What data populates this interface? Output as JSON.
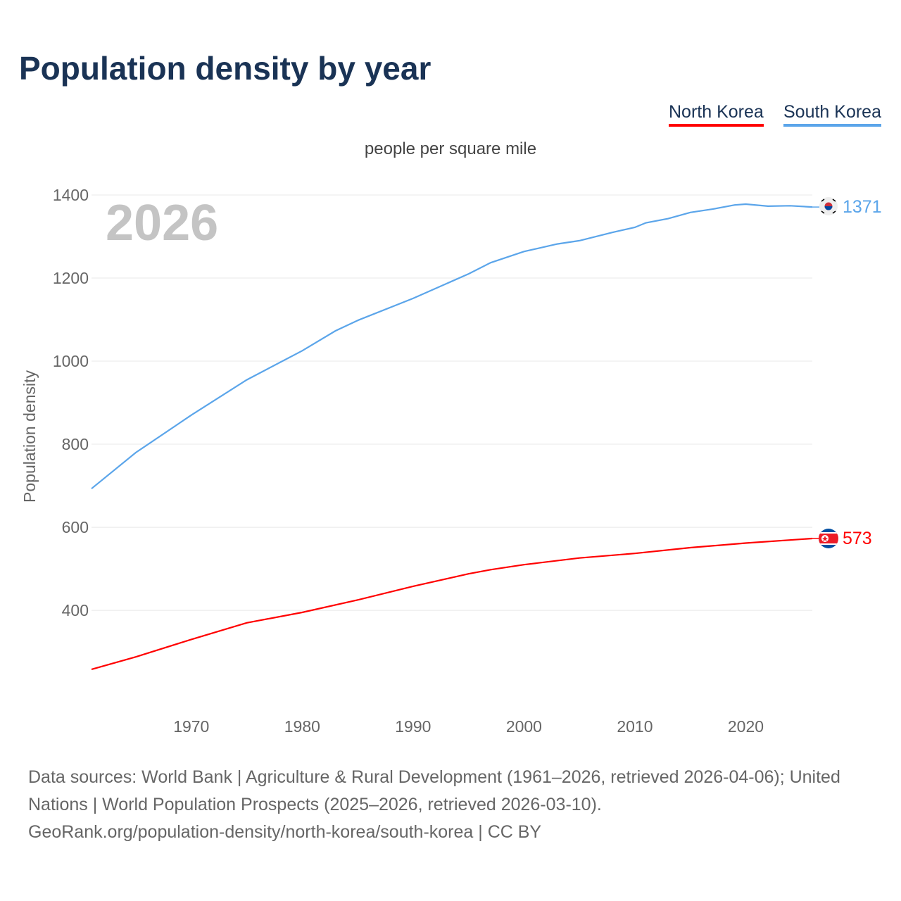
{
  "title": "Population density by year",
  "legend": [
    {
      "label": "North Korea",
      "color": "#ff0000"
    },
    {
      "label": "South Korea",
      "color": "#5ba5ea"
    }
  ],
  "unit": "people per square mile",
  "chart_data": {
    "type": "line",
    "title": "Population density by year",
    "ylabel": "Population density",
    "big_year_label": "2026",
    "xlim": [
      1961,
      2026
    ],
    "ylim": [
      190,
      1400
    ],
    "xticks": [
      1970,
      1980,
      1990,
      2000,
      2010,
      2020
    ],
    "yticks": [
      400,
      600,
      800,
      1000,
      1200,
      1400
    ],
    "grid": true,
    "legend_position": "top-right",
    "series": [
      {
        "name": "South Korea",
        "color": "#5ba5ea",
        "end_label": "1371",
        "x": [
          1961,
          1965,
          1970,
          1975,
          1980,
          1983,
          1985,
          1990,
          1995,
          1997,
          2000,
          2003,
          2005,
          2008,
          2010,
          2011,
          2013,
          2015,
          2017,
          2019,
          2020,
          2022,
          2024,
          2026
        ],
        "y": [
          693,
          780,
          870,
          955,
          1025,
          1073,
          1098,
          1151,
          1210,
          1237,
          1264,
          1282,
          1290,
          1310,
          1322,
          1333,
          1343,
          1358,
          1366,
          1376,
          1378,
          1373,
          1374,
          1371
        ]
      },
      {
        "name": "North Korea",
        "color": "#ff0000",
        "end_label": "573",
        "x": [
          1961,
          1965,
          1970,
          1975,
          1980,
          1985,
          1990,
          1995,
          1997,
          2000,
          2005,
          2010,
          2015,
          2020,
          2026
        ],
        "y": [
          258,
          288,
          330,
          370,
          395,
          425,
          458,
          488,
          498,
          510,
          526,
          537,
          551,
          562,
          573
        ]
      }
    ]
  },
  "footer": {
    "line1": "Data sources: World Bank | Agriculture & Rural Development (1961–2026, retrieved 2026-04-06); United Nations | World Population Prospects (2025–2026, retrieved 2026-03-10).",
    "line2": "GeoRank.org/population-density/north-korea/south-korea | CC BY"
  }
}
